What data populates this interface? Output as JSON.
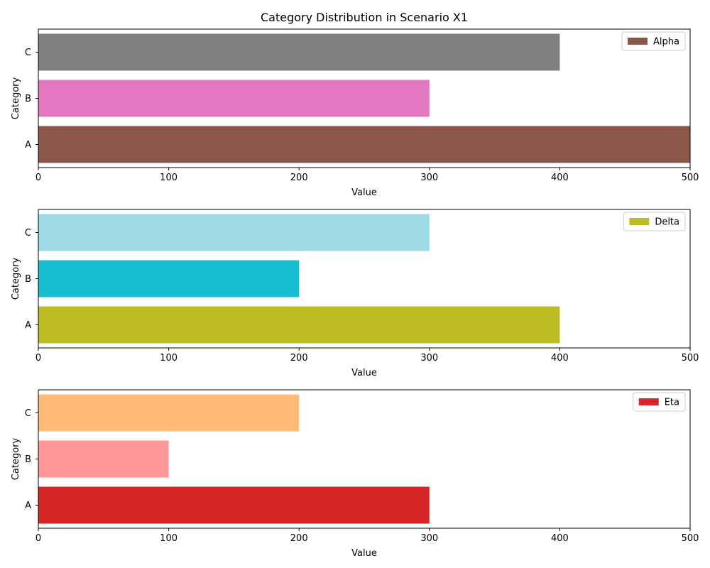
{
  "figure": {
    "title": "Category Distribution in Scenario X1"
  },
  "chart_data": [
    {
      "type": "bar",
      "orientation": "horizontal",
      "categories": [
        "A",
        "B",
        "C"
      ],
      "values": [
        500,
        300,
        400
      ],
      "colors": [
        "#8c564b",
        "#e377c2",
        "#7f7f7f"
      ],
      "xlabel": "Value",
      "ylabel": "Category",
      "xlim": [
        0,
        500
      ],
      "xticks": [
        0,
        100,
        200,
        300,
        400,
        500
      ],
      "legend": {
        "label": "Alpha",
        "color": "#8c564b",
        "placement": "top-right"
      },
      "grid": false
    },
    {
      "type": "bar",
      "orientation": "horizontal",
      "categories": [
        "A",
        "B",
        "C"
      ],
      "values": [
        400,
        200,
        300
      ],
      "colors": [
        "#bcbd22",
        "#17becf",
        "#9edae5"
      ],
      "xlabel": "Value",
      "ylabel": "Category",
      "xlim": [
        0,
        500
      ],
      "xticks": [
        0,
        100,
        200,
        300,
        400,
        500
      ],
      "legend": {
        "label": "Delta",
        "color": "#bcbd22",
        "placement": "top-right"
      },
      "grid": false
    },
    {
      "type": "bar",
      "orientation": "horizontal",
      "categories": [
        "A",
        "B",
        "C"
      ],
      "values": [
        300,
        100,
        200
      ],
      "colors": [
        "#d62728",
        "#ff9896",
        "#ffbb78"
      ],
      "xlabel": "Value",
      "ylabel": "Category",
      "xlim": [
        0,
        500
      ],
      "xticks": [
        0,
        100,
        200,
        300,
        400,
        500
      ],
      "legend": {
        "label": "Eta",
        "color": "#d62728",
        "placement": "top-right"
      },
      "grid": false
    }
  ]
}
